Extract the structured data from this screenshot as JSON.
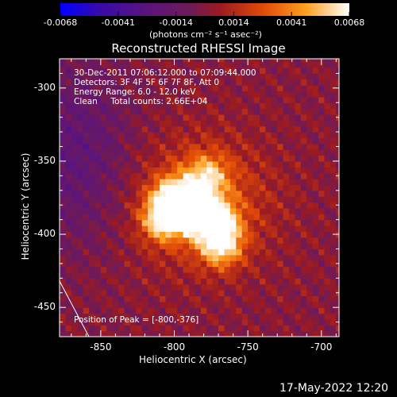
{
  "colorbar": {
    "tick_labels": [
      "-0.0068",
      "-0.0041",
      "-0.0014",
      "0.0014",
      "0.0041",
      "0.0068"
    ],
    "units": "(photons cm⁻² s⁻¹ asec⁻²)"
  },
  "chart_data": {
    "type": "heatmap",
    "title": "Reconstructed RHESSI Image",
    "xlabel": "Heliocentric X (arcsec)",
    "ylabel": "Heliocentric Y (arcsec)",
    "xlim": [
      -878,
      -688
    ],
    "ylim": [
      -470,
      -280
    ],
    "x_ticks": [
      "-850",
      "-800",
      "-750",
      "-700"
    ],
    "y_ticks": [
      "-300",
      "-350",
      "-400",
      "-450"
    ],
    "x_tick_values": [
      -850,
      -800,
      -750,
      -700
    ],
    "y_tick_values": [
      -300,
      -350,
      -400,
      -450
    ],
    "colorscale": [
      "#0000ff",
      "#2a0a9a",
      "#4c1a7a",
      "#7a1a3a",
      "#c42010",
      "#ff6a00",
      "#ffc040",
      "#ffffff"
    ],
    "value_range": [
      -0.0068,
      0.0068
    ],
    "sources": [
      {
        "x": -800,
        "y": -376,
        "peak": 0.0068
      },
      {
        "x": -785,
        "y": -385,
        "peak": 0.0058
      },
      {
        "x": -771,
        "y": -392,
        "peak": 0.0055
      },
      {
        "x": -808,
        "y": -390,
        "peak": 0.0052
      },
      {
        "x": -768,
        "y": -408,
        "peak": 0.005
      },
      {
        "x": -778,
        "y": -360,
        "peak": 0.004
      }
    ],
    "limb_line": {
      "points": [
        [
          -878,
          -432
        ],
        [
          -858,
          -470
        ]
      ]
    }
  },
  "annotations": {
    "lines": [
      "30-Dec-2011 07:06:12.000 to 07:09:44.000",
      "Detectors: 3F 4F 5F 6F 7F 8F, Att 0",
      "Energy Range: 6.0 - 12.0 keV",
      "Clean     Total counts: 2.66E+04"
    ],
    "peak_position": "Position of Peak = [-800,-376]"
  },
  "footer": {
    "timestamp": "17-May-2022 12:20"
  }
}
